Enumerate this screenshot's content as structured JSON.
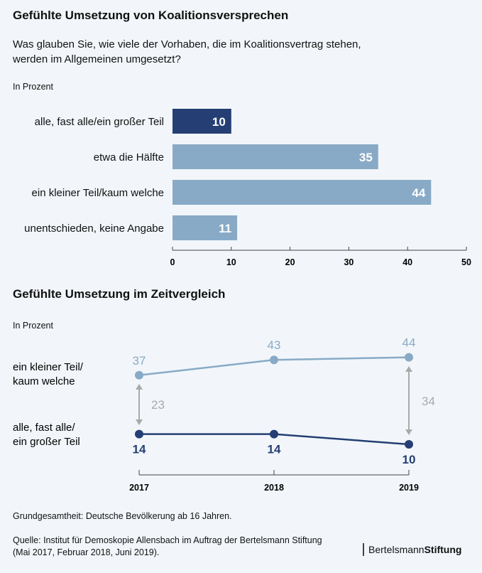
{
  "chart_data": [
    {
      "type": "bar",
      "orientation": "horizontal",
      "title": "Gefühlte Umsetzung von Koalitionsversprechen",
      "subtitle": "Was glauben Sie, wie viele der Vorhaben, die im Koalitionsvertrag stehen, werden im Allgemeinen umgesetzt?",
      "unit_label": "In Prozent",
      "categories": [
        "alle, fast alle/ein großer Teil",
        "etwa die Hälfte",
        "ein kleiner Teil/kaum welche",
        "unentschieden, keine Angabe"
      ],
      "values": [
        10,
        35,
        44,
        11
      ],
      "colors": [
        "#253f74",
        "#88aac6",
        "#88aac6",
        "#88aac6"
      ],
      "xlim": [
        0,
        50
      ],
      "xticks": [
        0,
        10,
        20,
        30,
        40,
        50
      ],
      "grid": false
    },
    {
      "type": "line",
      "title": "Gefühlte Umsetzung im Zeitvergleich",
      "unit_label": "In Prozent",
      "x": [
        "2017",
        "2018",
        "2019"
      ],
      "series": [
        {
          "name": "ein kleiner Teil/ kaum welche",
          "values": [
            37,
            43,
            44
          ],
          "color": "#88aac6"
        },
        {
          "name": "alle, fast alle/ ein großer Teil",
          "values": [
            14,
            14,
            10
          ],
          "color": "#253f74"
        }
      ],
      "annotations": [
        {
          "x": "2017",
          "text": "23"
        },
        {
          "x": "2019",
          "text": "34"
        }
      ],
      "annotation_color": "#aaaaaa",
      "grid": false
    }
  ],
  "footer": {
    "basis": "Grundgesamtheit: Deutsche Bevölkerung ab 16 Jahren.",
    "source1": "Quelle: Institut für Demoskopie Allensbach im Auftrag der Bertelsmann Stiftung",
    "source2": "(Mai 2017, Februar 2018, Juni 2019).",
    "logo_a": "Bertelsmann",
    "logo_b": "Stiftung"
  }
}
